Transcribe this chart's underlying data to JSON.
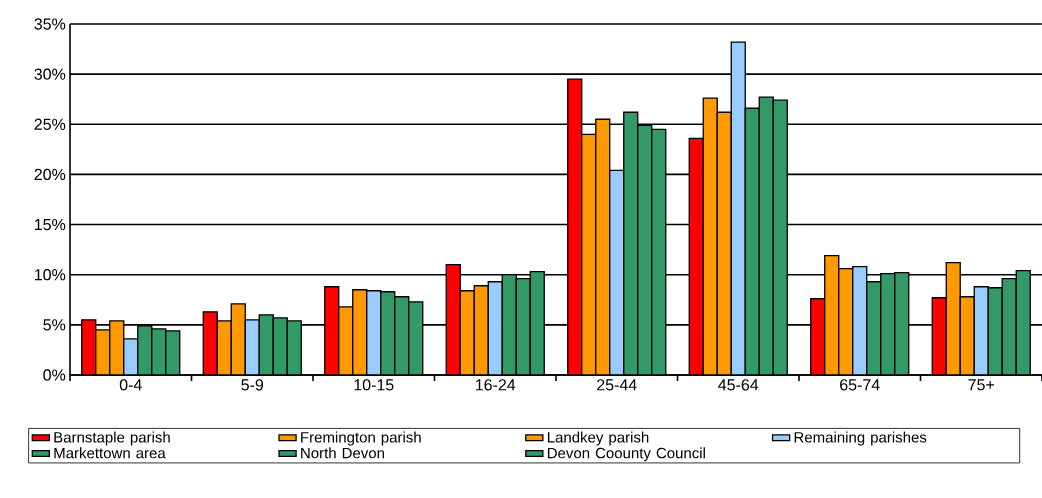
{
  "chart_data": {
    "type": "bar",
    "categories": [
      "0-4",
      "5-9",
      "10-15",
      "16-24",
      "25-44",
      "45-64",
      "65-74",
      "75+"
    ],
    "series": [
      {
        "name": "Barnstaple parish",
        "color": "#ff0000",
        "values": [
          5.5,
          6.3,
          8.8,
          11.0,
          29.5,
          23.6,
          7.6,
          7.7
        ]
      },
      {
        "name": "Fremington parish",
        "color": "#ff9900",
        "values": [
          4.5,
          5.4,
          6.8,
          8.4,
          24.0,
          27.6,
          11.9,
          11.2
        ]
      },
      {
        "name": "Landkey parish",
        "color": "#ff9900",
        "values": [
          5.4,
          7.1,
          8.5,
          8.9,
          25.5,
          26.2,
          10.6,
          7.8
        ]
      },
      {
        "name": "Remaining parishes",
        "color": "#99ccff",
        "values": [
          3.6,
          5.5,
          8.4,
          9.3,
          20.4,
          33.2,
          10.8,
          8.8
        ]
      },
      {
        "name": "Markettown area",
        "color": "#339966",
        "values": [
          4.9,
          6.0,
          8.3,
          10.0,
          26.2,
          26.6,
          9.3,
          8.7
        ]
      },
      {
        "name": "North Devon",
        "color": "#339966",
        "values": [
          4.6,
          5.7,
          7.8,
          9.6,
          24.9,
          27.7,
          10.1,
          9.6
        ]
      },
      {
        "name": "Devon Coounty Council",
        "color": "#339966",
        "values": [
          4.4,
          5.4,
          7.3,
          10.3,
          24.5,
          27.4,
          10.2,
          10.4
        ]
      }
    ],
    "ylim": [
      0,
      35
    ],
    "yticks": [
      {
        "value": 0,
        "label": "0%"
      },
      {
        "value": 5,
        "label": "5%"
      },
      {
        "value": 10,
        "label": "10%"
      },
      {
        "value": 15,
        "label": "15%"
      },
      {
        "value": 20,
        "label": "20%"
      },
      {
        "value": 25,
        "label": "25%"
      },
      {
        "value": 30,
        "label": "30%"
      },
      {
        "value": 35,
        "label": "35%"
      }
    ],
    "grid": "y",
    "legend": "bottom"
  }
}
